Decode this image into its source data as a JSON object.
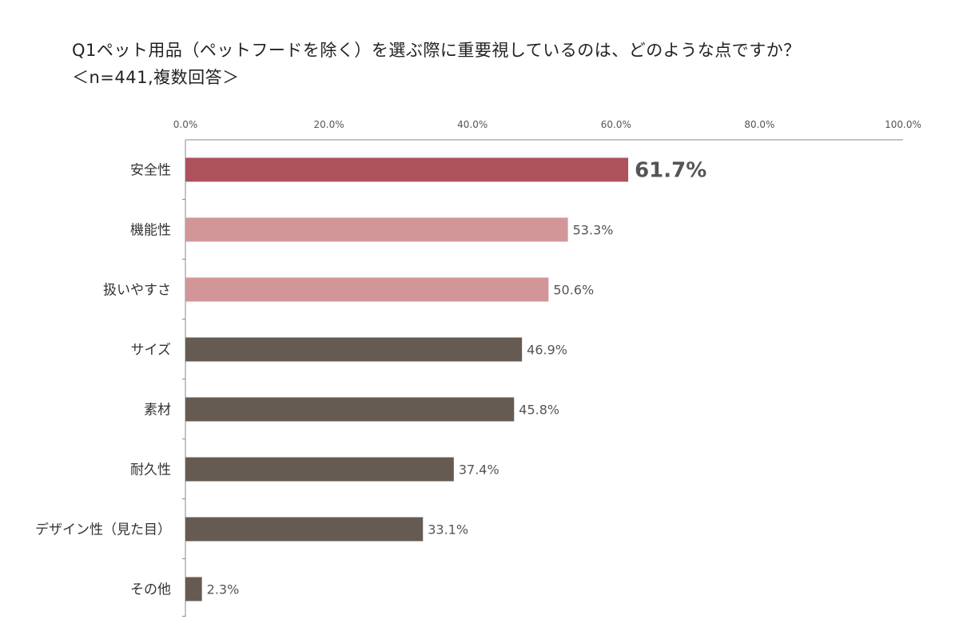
{
  "chart_data": {
    "type": "bar",
    "orientation": "horizontal",
    "title": "Q1ペット用品（ペットフードを除く）を選ぶ際に重要視しているのは、どのような点ですか？",
    "subtitle": "＜n=441,複数回答＞",
    "xlim": [
      0,
      100
    ],
    "xticks": [
      "0.0%",
      "20.0%",
      "40.0%",
      "60.0%",
      "80.0%",
      "100.0%"
    ],
    "xtick_values": [
      0,
      20,
      40,
      60,
      80,
      100
    ],
    "categories": [
      "安全性",
      "機能性",
      "扱いやすさ",
      "サイズ",
      "素材",
      "耐久性",
      "デザイン性（見た目）",
      "その他"
    ],
    "values": [
      61.7,
      53.3,
      50.6,
      46.9,
      45.8,
      37.4,
      33.1,
      2.3
    ],
    "value_labels": [
      "61.7%",
      "53.3%",
      "50.6%",
      "46.9%",
      "45.8%",
      "37.4%",
      "33.1%",
      "2.3%"
    ],
    "bar_colors": [
      "#ad525a",
      "#d29699",
      "#d29699",
      "#665b53",
      "#665b53",
      "#665b53",
      "#665b53",
      "#665b53"
    ],
    "label_colors": [
      "#ad525a",
      "#a9676b",
      "#a9676b",
      "#555555",
      "#555555",
      "#555555",
      "#555555",
      "#555555"
    ],
    "highlight_index": 0
  }
}
